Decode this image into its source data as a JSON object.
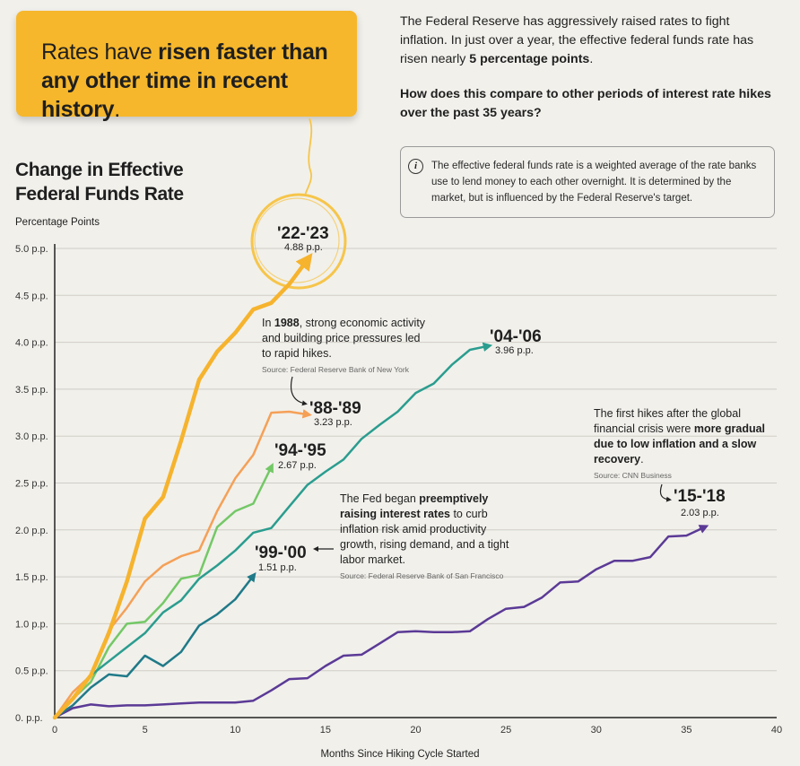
{
  "headline": {
    "part1": "Rates have ",
    "bold1": "risen faster than any other time in recent history",
    "end": "."
  },
  "intro": {
    "p1": "The Federal Reserve has aggressively raised rates to fight inflation. In just over a year, the effective federal funds rate has risen nearly ",
    "p1_bold": "5 percentage points",
    "p1_end": ".",
    "p2": "How does this compare to other periods of interest rate hikes over the past 35 years?"
  },
  "info": {
    "icon": "info-icon",
    "icon_glyph": "i",
    "text": "The effective federal funds rate is a weighted average of the rate banks use to lend money to each other overnight. It is determined by the market, but is influenced by the Federal Reserve's target."
  },
  "annotations": {
    "a1988": {
      "pre": "In ",
      "bold": "1988",
      "post": ", strong economic activity and building price pressures led to rapid hikes.",
      "source": "Source: Federal Reserve Bank of New York"
    },
    "a1999": {
      "pre": "The Fed began ",
      "bold": "preemptively raising interest rates",
      "post": " to curb inflation risk amid productivity growth, rising demand, and a tight labor market.",
      "source": "Source: Federal Reserve Bank of San Francisco"
    },
    "a2015": {
      "pre": "The first hikes after the global financial crisis were ",
      "bold": "more gradual due to low inflation and a slow recovery",
      "post": ".",
      "source": "Source: CNN Business"
    }
  },
  "chart_data": {
    "type": "line",
    "title": "Change in Effective Federal Funds Rate",
    "ylabel": "Percentage Points",
    "xlabel": "Months Since Hiking Cycle Started",
    "xlim": [
      0,
      40
    ],
    "ylim": [
      0,
      5
    ],
    "x_ticks": [
      "0",
      "5",
      "10",
      "15",
      "20",
      "25",
      "30",
      "35",
      "40"
    ],
    "y_ticks": [
      "0. p.p.",
      "0.5 p.p.",
      "1.0 p.p.",
      "1.5 p.p.",
      "2.0 p.p.",
      "2.5 p.p.",
      "3.0 p.p.",
      "3.5 p.p.",
      "4.0 p.p.",
      "4.5 p.p.",
      "5.0 p.p."
    ],
    "grid": "horizontal",
    "series": [
      {
        "name": "'22-'23",
        "value_label": "4.88 p.p.",
        "color": "#f6b32d",
        "x": [
          0,
          1,
          2,
          3,
          4,
          5,
          6,
          7,
          8,
          9,
          10,
          11,
          12,
          13,
          14
        ],
        "y": [
          0,
          0.2,
          0.45,
          0.9,
          1.45,
          2.12,
          2.35,
          2.95,
          3.6,
          3.9,
          4.1,
          4.35,
          4.42,
          4.62,
          4.88
        ]
      },
      {
        "name": "'04-'06",
        "value_label": "3.96 p.p.",
        "color": "#2a9d8f",
        "x": [
          0,
          1,
          2,
          3,
          4,
          5,
          6,
          7,
          8,
          9,
          10,
          11,
          12,
          13,
          14,
          15,
          16,
          17,
          18,
          19,
          20,
          21,
          22,
          23,
          24
        ],
        "y": [
          0,
          0.2,
          0.45,
          0.6,
          0.75,
          0.9,
          1.12,
          1.25,
          1.48,
          1.62,
          1.78,
          1.97,
          2.02,
          2.25,
          2.48,
          2.62,
          2.75,
          2.97,
          3.12,
          3.26,
          3.46,
          3.56,
          3.76,
          3.92,
          3.96
        ]
      },
      {
        "name": "'88-'89",
        "value_label": "3.23 p.p.",
        "color": "#f5a057",
        "x": [
          0,
          1,
          2,
          3,
          4,
          5,
          6,
          7,
          8,
          9,
          10,
          11,
          12,
          13,
          14
        ],
        "y": [
          0,
          0.27,
          0.45,
          0.93,
          1.17,
          1.45,
          1.62,
          1.72,
          1.78,
          2.2,
          2.55,
          2.8,
          3.25,
          3.26,
          3.23
        ]
      },
      {
        "name": "'94-'95",
        "value_label": "2.67 p.p.",
        "color": "#74c867",
        "x": [
          0,
          1,
          2,
          3,
          4,
          5,
          6,
          7,
          8,
          9,
          10,
          11,
          12
        ],
        "y": [
          0,
          0.2,
          0.38,
          0.75,
          1.0,
          1.02,
          1.22,
          1.48,
          1.52,
          2.03,
          2.2,
          2.28,
          2.67
        ]
      },
      {
        "name": "'99-'00",
        "value_label": "1.51 p.p.",
        "color": "#1f7a88",
        "x": [
          0,
          1,
          2,
          3,
          4,
          5,
          6,
          7,
          8,
          9,
          10,
          11
        ],
        "y": [
          0,
          0.13,
          0.32,
          0.46,
          0.44,
          0.66,
          0.55,
          0.7,
          0.98,
          1.1,
          1.26,
          1.51
        ]
      },
      {
        "name": "'15-'18",
        "value_label": "2.03 p.p.",
        "color": "#5b3a96",
        "x": [
          0,
          1,
          2,
          3,
          4,
          5,
          6,
          7,
          8,
          9,
          10,
          11,
          12,
          13,
          14,
          15,
          16,
          17,
          18,
          19,
          20,
          21,
          22,
          23,
          24,
          25,
          26,
          27,
          28,
          29,
          30,
          31,
          32,
          33,
          34,
          35,
          36
        ],
        "y": [
          0,
          0.1,
          0.14,
          0.12,
          0.13,
          0.13,
          0.14,
          0.15,
          0.16,
          0.16,
          0.16,
          0.18,
          0.29,
          0.41,
          0.42,
          0.55,
          0.66,
          0.67,
          0.79,
          0.91,
          0.92,
          0.91,
          0.91,
          0.92,
          1.05,
          1.16,
          1.18,
          1.28,
          1.44,
          1.45,
          1.58,
          1.67,
          1.67,
          1.71,
          1.93,
          1.94,
          2.03
        ]
      }
    ]
  }
}
